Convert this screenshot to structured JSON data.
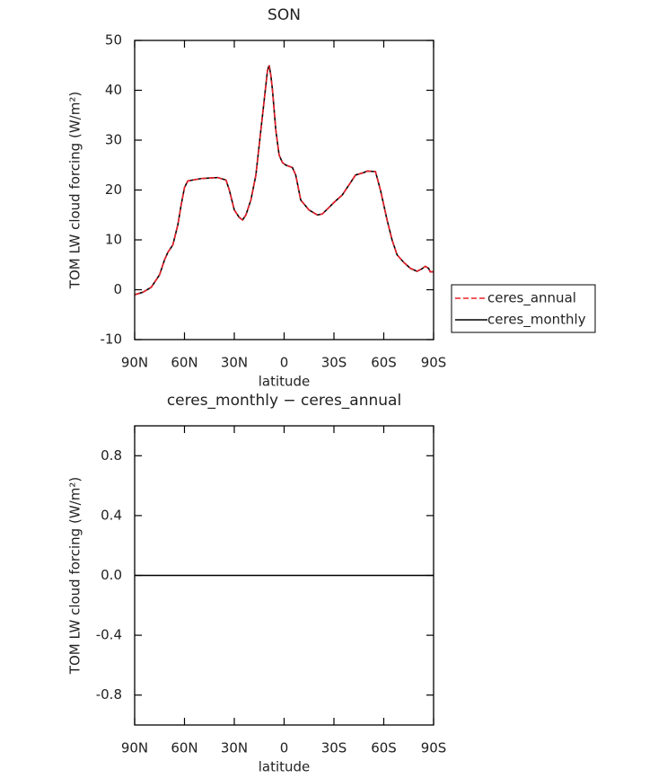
{
  "chart_data": [
    {
      "type": "line",
      "title": "SON",
      "xlabel": "latitude",
      "ylabel": "TOM LW cloud forcing (W/m²)",
      "x": [
        90,
        85,
        80,
        75,
        72,
        70,
        67,
        64,
        62,
        60,
        58,
        55,
        50,
        45,
        40,
        35,
        33,
        30,
        27,
        25,
        23,
        20,
        17,
        15,
        12,
        10,
        9,
        8,
        7,
        5,
        3,
        1,
        -1,
        -5,
        -7,
        -10,
        -15,
        -20,
        -23,
        -27,
        -30,
        -35,
        -40,
        -43,
        -48,
        -50,
        -55,
        -58,
        -62,
        -65,
        -68,
        -72,
        -76,
        -80,
        -83,
        -85,
        -87,
        -88,
        -90
      ],
      "series": [
        {
          "name": "ceres_monthly",
          "color": "#000000",
          "linestyle": "solid",
          "values": [
            -1,
            -0.5,
            0.5,
            3,
            6,
            7.5,
            9,
            13,
            17,
            20.5,
            21.8,
            22,
            22.3,
            22.4,
            22.5,
            22,
            20,
            16,
            14.5,
            14,
            15,
            18,
            23,
            29,
            38,
            44,
            45,
            43,
            40,
            32,
            27,
            25.5,
            25,
            24.5,
            23,
            18,
            16,
            15,
            15.2,
            16.5,
            17.5,
            19,
            21.5,
            23,
            23.5,
            23.8,
            23.7,
            20,
            14,
            10,
            7,
            5.5,
            4.3,
            3.7,
            4.2,
            4.7,
            4.3,
            3.6,
            3.6
          ]
        },
        {
          "name": "ceres_annual",
          "color": "#e8202a",
          "linestyle": "dashed",
          "values": [
            -1,
            -0.5,
            0.5,
            3,
            6,
            7.5,
            9,
            13,
            17,
            20.5,
            21.8,
            22,
            22.3,
            22.4,
            22.5,
            22,
            20,
            16,
            14.5,
            14,
            15,
            18,
            23,
            29,
            38,
            44,
            45,
            43,
            40,
            32,
            27,
            25.5,
            25,
            24.5,
            23,
            18,
            16,
            15,
            15.2,
            16.5,
            17.5,
            19,
            21.5,
            23,
            23.5,
            23.8,
            23.7,
            20,
            14,
            10,
            7,
            5.5,
            4.3,
            3.7,
            4.2,
            4.7,
            4.3,
            3.6,
            3.6
          ]
        }
      ],
      "xlim": [
        90,
        -90
      ],
      "xticks": [
        {
          "value": 90,
          "label": "90N"
        },
        {
          "value": 60,
          "label": "60N"
        },
        {
          "value": 30,
          "label": "30N"
        },
        0,
        {
          "value": -30,
          "label": "30S"
        },
        {
          "value": -60,
          "label": "60S"
        },
        {
          "value": -90,
          "label": "90S"
        }
      ],
      "ylim": [
        -10,
        50
      ],
      "yticks": [
        -10,
        0,
        10,
        20,
        30,
        40,
        50
      ],
      "legend": "right"
    },
    {
      "type": "line",
      "title": "ceres_monthly − ceres_annual",
      "xlabel": "latitude",
      "ylabel": "TOM LW cloud forcing (W/m²)",
      "x": [
        90,
        -90
      ],
      "series": [
        {
          "color": "#000000",
          "linestyle": "solid",
          "values": [
            0,
            0
          ]
        }
      ],
      "xlim": [
        90,
        -90
      ],
      "xticks": [
        {
          "value": 90,
          "label": "90N"
        },
        {
          "value": 60,
          "label": "60N"
        },
        {
          "value": 30,
          "label": "30N"
        },
        0,
        {
          "value": -30,
          "label": "30S"
        },
        {
          "value": -60,
          "label": "60S"
        },
        {
          "value": -90,
          "label": "90S"
        }
      ],
      "ylim": [
        -1,
        1
      ],
      "yticks": [
        -0.8,
        -0.4,
        {
          "value": 0,
          "label": "0.0"
        },
        0.4,
        0.8
      ]
    }
  ]
}
